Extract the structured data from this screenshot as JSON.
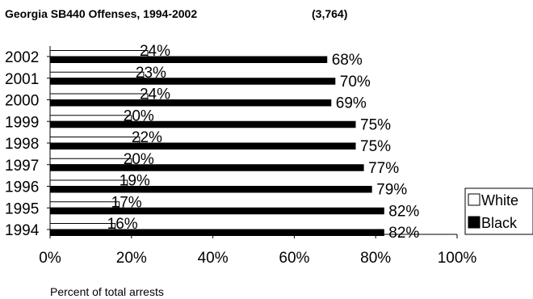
{
  "chart_data": {
    "type": "bar",
    "orientation": "horizontal",
    "title": "Georgia SB440 Offenses, 1994-2002",
    "subtitle": "(3,764)",
    "xlabel": "Percent of total arrests",
    "ylabel": "",
    "xlim": [
      0,
      100
    ],
    "xticks": [
      "0%",
      "20%",
      "40%",
      "60%",
      "80%",
      "100%"
    ],
    "categories": [
      "2002",
      "2001",
      "2000",
      "1999",
      "1998",
      "1997",
      "1996",
      "1995",
      "1994"
    ],
    "series": [
      {
        "name": "White",
        "color": "#ffffff",
        "values": [
          24,
          23,
          24,
          20,
          22,
          20,
          19,
          17,
          16
        ],
        "labels": [
          "24%",
          "23%",
          "24%",
          "20%",
          "22%",
          "20%",
          "19%",
          "17%",
          "16%"
        ]
      },
      {
        "name": "Black",
        "color": "#000000",
        "values": [
          68,
          70,
          69,
          75,
          75,
          77,
          79,
          82,
          82
        ],
        "labels": [
          "68%",
          "70%",
          "69%",
          "75%",
          "75%",
          "77%",
          "79%",
          "82%",
          "82%"
        ]
      }
    ],
    "legend": "right",
    "grid": false
  }
}
